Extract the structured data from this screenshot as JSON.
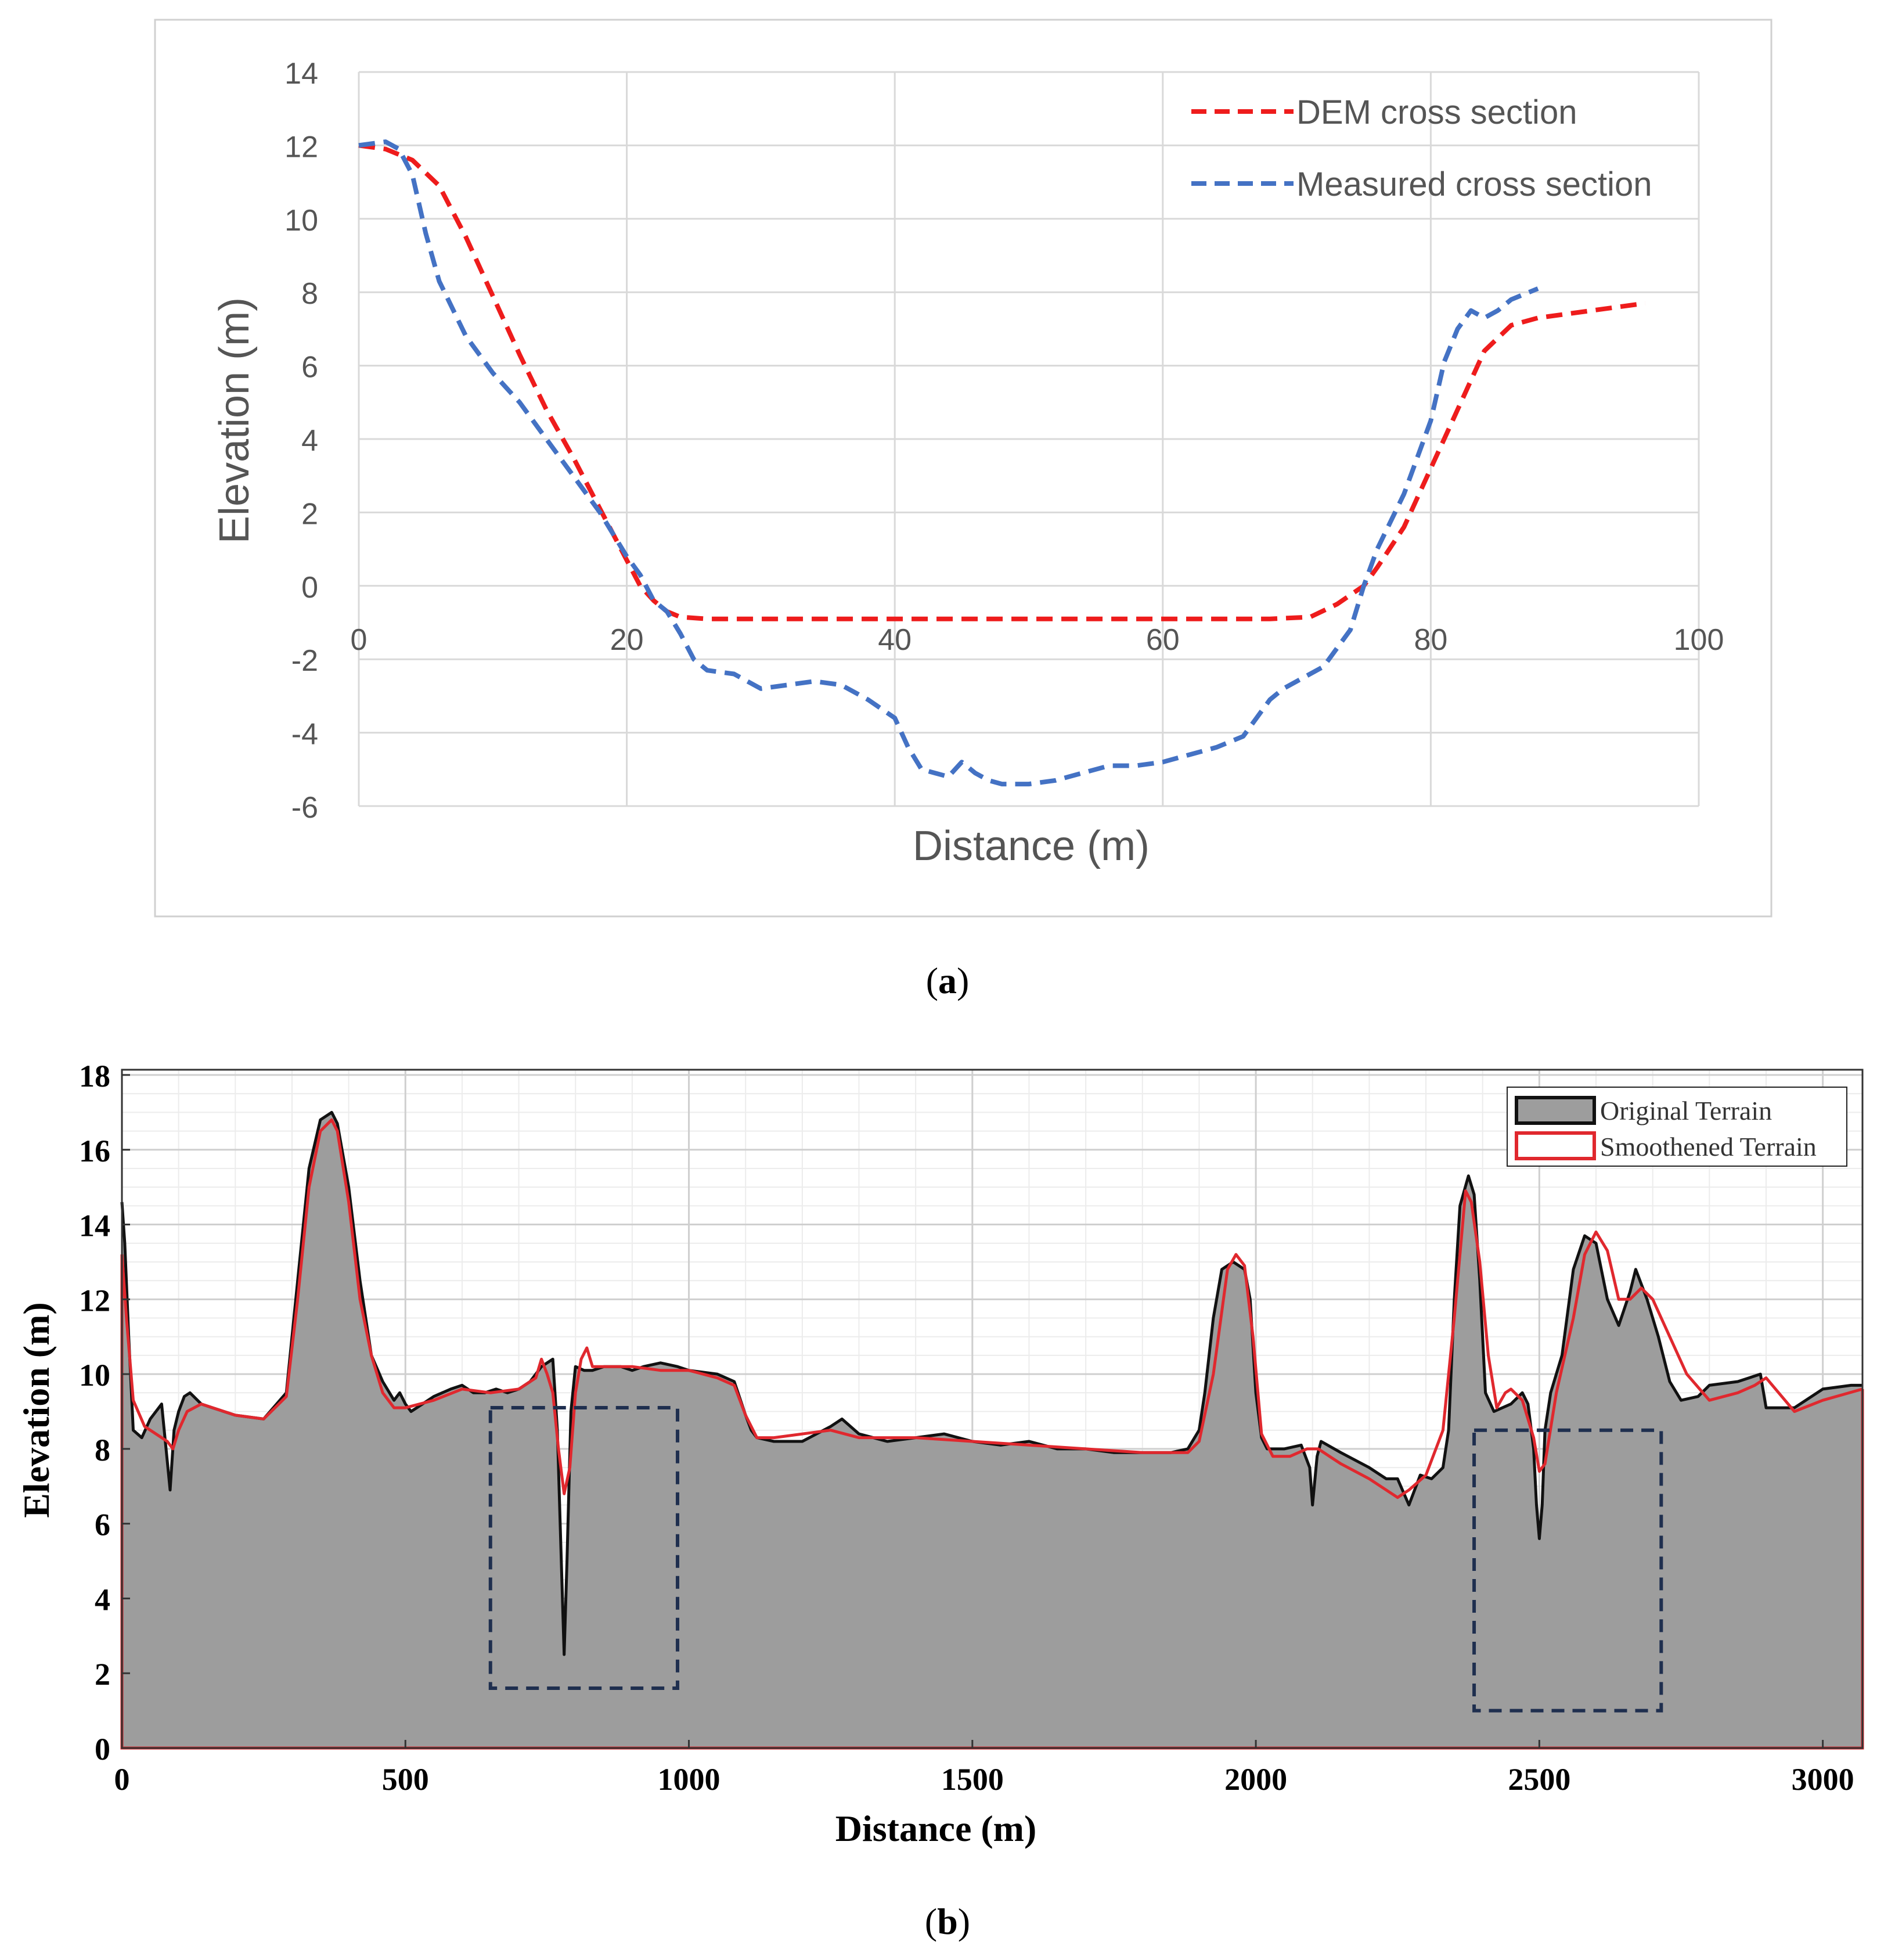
{
  "panels": {
    "a": {
      "caption_open": "(",
      "caption_letter": "a",
      "caption_close": ")"
    },
    "b": {
      "caption_open": "(",
      "caption_letter": "b",
      "caption_close": ")"
    }
  },
  "colors": {
    "dem": "#ee1c1c",
    "measured": "#4472c4",
    "terrain_fill": "#9d9d9d",
    "terrain_line": "#111111",
    "smooth_line": "#e0282e",
    "box": "#1f2f4f"
  },
  "chart_data": [
    {
      "type": "line",
      "panel": "a",
      "title": "",
      "xlabel": "Distance (m)",
      "ylabel": "Elevation (m)",
      "xlim": [
        0,
        100
      ],
      "ylim": [
        -6,
        14
      ],
      "xticks": [
        0,
        20,
        40,
        60,
        80,
        100
      ],
      "yticks": [
        14,
        12,
        10,
        8,
        6,
        4,
        2,
        0,
        -2,
        -4,
        -6
      ],
      "grid": true,
      "legend_position": "top-right",
      "series": [
        {
          "name": "DEM cross section",
          "style": "dashed",
          "x": [
            0,
            2,
            4,
            6,
            8,
            10,
            12,
            14,
            16,
            18,
            20,
            21,
            22,
            23,
            24,
            26,
            30,
            40,
            50,
            60,
            68,
            71,
            73,
            75,
            76,
            78,
            80,
            82,
            84,
            86,
            88,
            90,
            94,
            96
          ],
          "y": [
            12,
            11.9,
            11.6,
            10.9,
            9.5,
            7.9,
            6.3,
            4.8,
            3.5,
            2.1,
            0.7,
            0,
            -0.4,
            -0.7,
            -0.85,
            -0.9,
            -0.9,
            -0.9,
            -0.9,
            -0.9,
            -0.9,
            -0.85,
            -0.5,
            0,
            0.5,
            1.6,
            3.2,
            4.8,
            6.4,
            7.1,
            7.3,
            7.4,
            7.6,
            7.7
          ]
        },
        {
          "name": "Measured cross section",
          "style": "dashed",
          "x": [
            0,
            2,
            3,
            4,
            5,
            6,
            8,
            10,
            12,
            14,
            16,
            18,
            20,
            21,
            22,
            23,
            24,
            25,
            26,
            28,
            30,
            32,
            34,
            36,
            38,
            40,
            41,
            42,
            43,
            44,
            45,
            46,
            47,
            48,
            50,
            52,
            54,
            56,
            58,
            60,
            62,
            64,
            66,
            68,
            69,
            70,
            72,
            74,
            75,
            76,
            78,
            80,
            81,
            82,
            83,
            84,
            85,
            86,
            88
          ],
          "y": [
            12,
            12.1,
            11.9,
            11.2,
            9.6,
            8.3,
            6.8,
            5.8,
            5,
            4,
            3,
            2,
            0.8,
            0.3,
            -0.4,
            -0.7,
            -1.3,
            -2,
            -2.3,
            -2.4,
            -2.8,
            -2.7,
            -2.6,
            -2.7,
            -3.1,
            -3.6,
            -4.4,
            -5,
            -5.1,
            -5.2,
            -4.8,
            -5.1,
            -5.3,
            -5.4,
            -5.4,
            -5.3,
            -5.1,
            -4.9,
            -4.9,
            -4.8,
            -4.6,
            -4.4,
            -4.1,
            -3.1,
            -2.8,
            -2.6,
            -2.2,
            -1.2,
            0,
            1,
            2.5,
            4.5,
            6.1,
            7,
            7.5,
            7.3,
            7.5,
            7.8,
            8.1
          ]
        }
      ]
    },
    {
      "type": "area",
      "panel": "b",
      "title": "",
      "xlabel": "Distance (m)",
      "ylabel": "Elevation (m)",
      "xlim": [
        0,
        3070
      ],
      "ylim": [
        0,
        18
      ],
      "xticks": [
        0,
        500,
        1000,
        1500,
        2000,
        2500,
        3000
      ],
      "yticks": [
        18,
        16,
        14,
        12,
        10,
        8,
        6,
        4,
        2,
        0
      ],
      "grid": true,
      "legend_position": "top-right",
      "series": [
        {
          "name": "Original Terrain",
          "style": "filled area",
          "x": [
            0,
            5,
            12,
            20,
            35,
            50,
            70,
            85,
            92,
            100,
            110,
            120,
            140,
            160,
            200,
            250,
            290,
            310,
            330,
            350,
            370,
            380,
            400,
            420,
            440,
            460,
            480,
            490,
            500,
            510,
            520,
            550,
            580,
            600,
            620,
            640,
            660,
            680,
            700,
            720,
            740,
            760,
            768,
            775,
            780,
            785,
            792,
            800,
            815,
            830,
            850,
            880,
            900,
            920,
            950,
            980,
            1000,
            1050,
            1080,
            1100,
            1110,
            1120,
            1150,
            1200,
            1250,
            1270,
            1300,
            1350,
            1400,
            1450,
            1500,
            1550,
            1600,
            1650,
            1700,
            1750,
            1800,
            1850,
            1880,
            1900,
            1910,
            1925,
            1940,
            1960,
            1980,
            1990,
            2000,
            2010,
            2020,
            2050,
            2080,
            2095,
            2100,
            2108,
            2115,
            2150,
            2200,
            2230,
            2250,
            2270,
            2290,
            2310,
            2330,
            2340,
            2350,
            2360,
            2375,
            2385,
            2395,
            2405,
            2420,
            2450,
            2470,
            2480,
            2490,
            2495,
            2500,
            2505,
            2510,
            2520,
            2540,
            2560,
            2580,
            2600,
            2620,
            2640,
            2660,
            2670,
            2690,
            2710,
            2730,
            2750,
            2780,
            2800,
            2850,
            2870,
            2890,
            2900,
            2950,
            3000,
            3050,
            3070
          ],
          "y": [
            14.6,
            13.5,
            11,
            8.5,
            8.3,
            8.8,
            9.2,
            6.9,
            8.5,
            9,
            9.4,
            9.5,
            9.2,
            9.1,
            8.9,
            8.8,
            9.5,
            12.5,
            15.5,
            16.8,
            17,
            16.7,
            15,
            12.5,
            10.5,
            9.8,
            9.3,
            9.5,
            9.2,
            9,
            9.1,
            9.4,
            9.6,
            9.7,
            9.5,
            9.5,
            9.6,
            9.5,
            9.6,
            9.8,
            10.2,
            10.4,
            8.5,
            5,
            2.5,
            5,
            9,
            10.2,
            10.1,
            10.1,
            10.2,
            10.2,
            10.1,
            10.2,
            10.3,
            10.2,
            10.1,
            10,
            9.8,
            8.9,
            8.5,
            8.3,
            8.2,
            8.2,
            8.6,
            8.8,
            8.4,
            8.2,
            8.3,
            8.4,
            8.2,
            8.1,
            8.2,
            8.0,
            8.0,
            7.9,
            7.9,
            7.9,
            8.0,
            8.5,
            9.5,
            11.5,
            12.8,
            13,
            12.8,
            12,
            9.5,
            8.3,
            8,
            8,
            8.1,
            7.5,
            6.5,
            7.8,
            8.2,
            7.9,
            7.5,
            7.2,
            7.2,
            6.5,
            7.3,
            7.2,
            7.5,
            8.5,
            12,
            14.5,
            15.3,
            14.8,
            12.5,
            9.5,
            9,
            9.2,
            9.5,
            9.2,
            8,
            6.5,
            5.6,
            6.5,
            8.5,
            9.5,
            10.5,
            12.8,
            13.7,
            13.5,
            12,
            11.3,
            12.2,
            12.8,
            12,
            11,
            9.8,
            9.3,
            9.4,
            9.7,
            9.8,
            9.9,
            10.0,
            9.1,
            9.1,
            9.6,
            9.7,
            9.7
          ]
        },
        {
          "name": "Smoothened Terrain",
          "style": "solid",
          "x": [
            0,
            8,
            20,
            40,
            60,
            80,
            90,
            100,
            115,
            140,
            200,
            250,
            290,
            310,
            330,
            350,
            370,
            380,
            400,
            420,
            440,
            460,
            480,
            500,
            550,
            600,
            650,
            700,
            730,
            740,
            750,
            760,
            770,
            780,
            790,
            800,
            810,
            820,
            830,
            850,
            900,
            950,
            1000,
            1050,
            1080,
            1100,
            1120,
            1150,
            1250,
            1300,
            1400,
            1500,
            1600,
            1700,
            1800,
            1880,
            1900,
            1925,
            1950,
            1965,
            1980,
            1995,
            2010,
            2030,
            2060,
            2090,
            2110,
            2150,
            2200,
            2250,
            2270,
            2300,
            2330,
            2350,
            2370,
            2380,
            2395,
            2410,
            2425,
            2440,
            2450,
            2470,
            2490,
            2500,
            2510,
            2530,
            2560,
            2580,
            2600,
            2620,
            2640,
            2660,
            2680,
            2700,
            2730,
            2760,
            2800,
            2850,
            2880,
            2900,
            2950,
            3000,
            3070
          ],
          "y": [
            13.2,
            11.5,
            9.3,
            8.6,
            8.4,
            8.2,
            8,
            8.5,
            9.0,
            9.2,
            8.9,
            8.8,
            9.4,
            12,
            15,
            16.5,
            16.8,
            16.5,
            14.6,
            12,
            10.5,
            9.5,
            9.1,
            9.1,
            9.3,
            9.6,
            9.5,
            9.6,
            9.9,
            10.4,
            10,
            9.5,
            8,
            6.8,
            7.5,
            9.5,
            10.4,
            10.7,
            10.2,
            10.2,
            10.2,
            10.1,
            10.1,
            9.9,
            9.7,
            8.9,
            8.3,
            8.3,
            8.5,
            8.3,
            8.3,
            8.2,
            8.1,
            8.0,
            7.9,
            7.9,
            8.2,
            10,
            12.8,
            13.2,
            12.9,
            11,
            8.4,
            7.8,
            7.8,
            8.0,
            8.0,
            7.6,
            7.2,
            6.7,
            6.9,
            7.3,
            8.5,
            11.5,
            14.9,
            14.6,
            13,
            10.5,
            9.1,
            9.5,
            9.6,
            9.3,
            8.3,
            7.4,
            7.6,
            9.5,
            11.5,
            13.2,
            13.8,
            13.3,
            12,
            12.0,
            12.3,
            12.0,
            11,
            10.0,
            9.3,
            9.5,
            9.7,
            9.9,
            9.0,
            9.3,
            9.6
          ]
        }
      ],
      "annotations": [
        {
          "type": "dashed-box",
          "x": [
            650,
            980
          ],
          "y": [
            1.6,
            9.1
          ]
        },
        {
          "type": "dashed-box",
          "x": [
            2385,
            2715
          ],
          "y": [
            1.0,
            8.5
          ]
        }
      ]
    }
  ]
}
